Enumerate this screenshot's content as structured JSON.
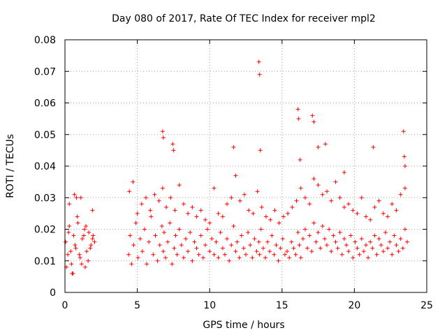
{
  "chart_data": {
    "type": "scatter",
    "title": "Day 080 of 2017, Rate Of TEC Index for receiver mpl2",
    "xlabel": "GPS time / hours",
    "ylabel": "ROTI / TECUs",
    "xlim": [
      0,
      25
    ],
    "ylim": [
      0,
      0.08
    ],
    "x_ticks": [
      0,
      5,
      10,
      15,
      20,
      25
    ],
    "x_tick_labels": [
      "0",
      "5",
      "10",
      "15",
      "20",
      "25"
    ],
    "y_ticks": [
      0,
      0.01,
      0.02,
      0.03,
      0.04,
      0.05,
      0.06,
      0.07,
      0.08
    ],
    "y_tick_labels": [
      "0",
      "0.01",
      "0.02",
      "0.03",
      "0.04",
      "0.05",
      "0.06",
      "0.07",
      "0.08"
    ],
    "grid": true,
    "marker": "+",
    "marker_color": "#ff0000",
    "series": [
      {
        "name": "ROTI",
        "x": [
          0.05,
          0.2,
          0.3,
          0.45,
          0.6,
          0.75,
          0.9,
          1.05,
          1.2,
          1.35,
          1.5,
          1.65,
          1.8,
          1.95,
          2.05,
          0.1,
          0.25,
          0.4,
          0.55,
          0.7,
          0.85,
          1.0,
          1.15,
          1.3,
          1.45,
          1.6,
          1.75,
          1.9,
          0.3,
          0.65,
          0.8,
          1.1,
          1.9,
          0.5,
          1.4,
          4.4,
          4.5,
          4.6,
          4.75,
          4.9,
          5.05,
          5.2,
          5.35,
          5.5,
          5.65,
          5.8,
          5.95,
          6.1,
          6.25,
          6.4,
          6.55,
          6.7,
          6.8,
          6.85,
          6.95,
          7.1,
          7.25,
          7.4,
          7.55,
          7.65,
          7.75,
          7.9,
          8.05,
          8.2,
          8.35,
          8.5,
          8.65,
          8.8,
          8.95,
          9.1,
          9.25,
          9.4,
          9.55,
          9.7,
          9.85,
          10.0,
          10.15,
          10.3,
          10.45,
          10.6,
          10.75,
          10.9,
          11.05,
          11.2,
          11.35,
          11.5,
          11.65,
          11.8,
          11.9,
          12.05,
          12.2,
          12.35,
          12.5,
          12.65,
          12.8,
          12.95,
          13.1,
          13.25,
          13.4,
          13.45,
          13.55,
          13.7,
          13.85,
          14.0,
          14.15,
          14.3,
          14.45,
          14.6,
          14.75,
          14.9,
          15.05,
          15.2,
          15.35,
          15.5,
          15.65,
          15.8,
          15.95,
          16.1,
          16.2,
          16.3,
          16.45,
          16.6,
          16.75,
          16.9,
          17.05,
          17.2,
          17.35,
          17.5,
          17.65,
          17.8,
          17.95,
          18.1,
          18.25,
          18.4,
          18.55,
          18.7,
          18.85,
          19.0,
          19.15,
          19.3,
          19.45,
          19.6,
          19.75,
          19.9,
          20.05,
          20.2,
          20.35,
          20.5,
          20.65,
          20.8,
          20.95,
          21.1,
          21.25,
          21.4,
          21.55,
          21.7,
          21.85,
          22.0,
          22.15,
          22.3,
          22.45,
          22.6,
          22.75,
          22.9,
          23.05,
          23.2,
          23.35,
          23.5,
          23.65,
          4.45,
          4.7,
          5.0,
          5.3,
          5.6,
          5.9,
          6.2,
          6.5,
          6.75,
          7.0,
          7.3,
          7.6,
          7.9,
          8.2,
          8.5,
          8.8,
          9.1,
          9.4,
          9.7,
          10.0,
          10.3,
          10.6,
          10.9,
          11.2,
          11.5,
          11.8,
          12.1,
          12.4,
          12.7,
          13.0,
          13.3,
          13.6,
          13.9,
          14.2,
          14.5,
          14.8,
          15.1,
          15.4,
          15.7,
          16.0,
          16.3,
          16.6,
          16.9,
          17.2,
          17.5,
          17.8,
          18.1,
          18.4,
          18.7,
          19.0,
          19.3,
          19.6,
          19.9,
          20.2,
          20.5,
          20.8,
          21.1,
          21.4,
          21.7,
          22.0,
          22.3,
          22.6,
          22.9,
          23.2,
          23.5,
          6.75,
          6.8,
          7.45,
          7.5,
          11.65,
          13.4,
          13.45,
          13.5,
          16.1,
          16.15,
          16.25,
          17.1,
          17.2,
          17.5,
          18.0,
          19.3,
          21.3,
          23.4,
          23.45,
          23.5
        ],
        "y": [
          0.016,
          0.012,
          0.021,
          0.009,
          0.018,
          0.014,
          0.022,
          0.011,
          0.017,
          0.02,
          0.013,
          0.019,
          0.015,
          0.018,
          0.016,
          0.008,
          0.019,
          0.013,
          0.006,
          0.015,
          0.024,
          0.012,
          0.009,
          0.018,
          0.021,
          0.01,
          0.014,
          0.017,
          0.028,
          0.031,
          0.03,
          0.03,
          0.026,
          0.006,
          0.008,
          0.012,
          0.018,
          0.009,
          0.015,
          0.022,
          0.011,
          0.017,
          0.013,
          0.02,
          0.009,
          0.016,
          0.024,
          0.012,
          0.018,
          0.01,
          0.015,
          0.021,
          0.013,
          0.019,
          0.011,
          0.016,
          0.022,
          0.009,
          0.014,
          0.018,
          0.012,
          0.02,
          0.015,
          0.011,
          0.017,
          0.013,
          0.019,
          0.01,
          0.016,
          0.014,
          0.012,
          0.018,
          0.011,
          0.015,
          0.02,
          0.013,
          0.017,
          0.012,
          0.016,
          0.011,
          0.019,
          0.014,
          0.012,
          0.017,
          0.01,
          0.015,
          0.021,
          0.013,
          0.016,
          0.011,
          0.018,
          0.014,
          0.012,
          0.019,
          0.015,
          0.011,
          0.017,
          0.013,
          0.016,
          0.012,
          0.02,
          0.014,
          0.011,
          0.016,
          0.013,
          0.018,
          0.012,
          0.015,
          0.01,
          0.014,
          0.017,
          0.012,
          0.013,
          0.011,
          0.016,
          0.014,
          0.012,
          0.019,
          0.015,
          0.011,
          0.017,
          0.02,
          0.014,
          0.018,
          0.013,
          0.022,
          0.016,
          0.019,
          0.014,
          0.021,
          0.017,
          0.015,
          0.02,
          0.013,
          0.018,
          0.016,
          0.014,
          0.019,
          0.012,
          0.017,
          0.015,
          0.013,
          0.018,
          0.011,
          0.016,
          0.014,
          0.012,
          0.017,
          0.013,
          0.015,
          0.011,
          0.016,
          0.014,
          0.018,
          0.012,
          0.017,
          0.015,
          0.013,
          0.019,
          0.014,
          0.016,
          0.012,
          0.018,
          0.015,
          0.013,
          0.017,
          0.014,
          0.02,
          0.016,
          0.032,
          0.035,
          0.025,
          0.028,
          0.03,
          0.026,
          0.031,
          0.029,
          0.033,
          0.027,
          0.03,
          0.026,
          0.034,
          0.028,
          0.025,
          0.027,
          0.024,
          0.026,
          0.023,
          0.022,
          0.033,
          0.025,
          0.024,
          0.028,
          0.03,
          0.037,
          0.029,
          0.031,
          0.026,
          0.025,
          0.032,
          0.027,
          0.024,
          0.023,
          0.026,
          0.022,
          0.024,
          0.025,
          0.027,
          0.029,
          0.033,
          0.03,
          0.028,
          0.036,
          0.034,
          0.031,
          0.032,
          0.029,
          0.035,
          0.03,
          0.027,
          0.028,
          0.026,
          0.025,
          0.03,
          0.024,
          0.023,
          0.027,
          0.029,
          0.025,
          0.024,
          0.028,
          0.026,
          0.031,
          0.033,
          0.051,
          0.049,
          0.047,
          0.045,
          0.046,
          0.073,
          0.069,
          0.045,
          0.058,
          0.055,
          0.042,
          0.056,
          0.054,
          0.046,
          0.047,
          0.038,
          0.046,
          0.051,
          0.043,
          0.04
        ]
      }
    ]
  }
}
